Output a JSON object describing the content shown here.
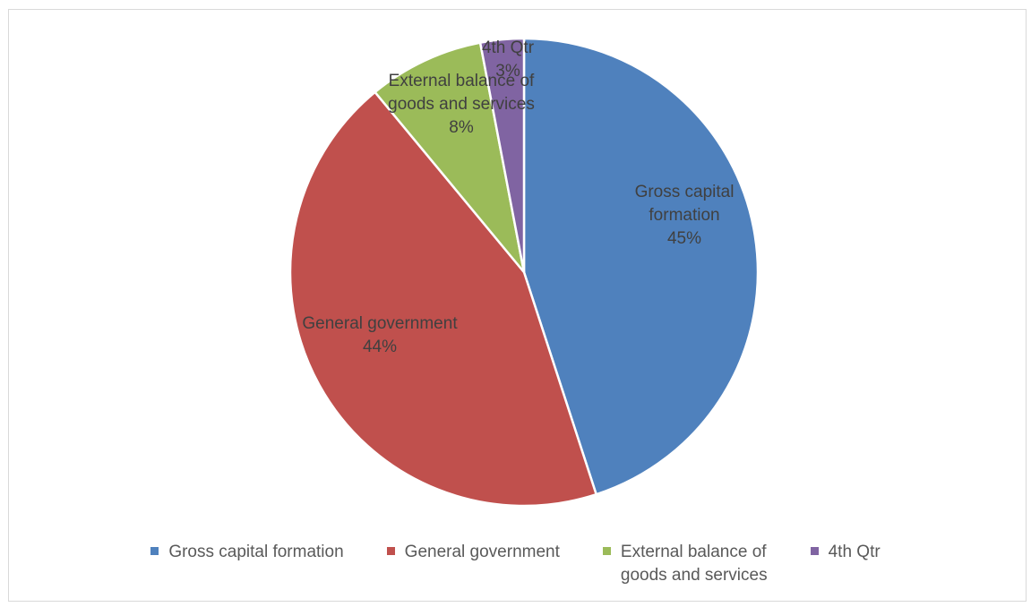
{
  "chart_data": {
    "type": "pie",
    "title": "",
    "slices": [
      {
        "label": "Gross capital formation",
        "value": 45,
        "data_label": "Gross capital\nformation\n45%",
        "color": "#4f81bd"
      },
      {
        "label": "General government",
        "value": 44,
        "data_label": "General government\n44%",
        "color": "#c0504d"
      },
      {
        "label": "External balance of goods and services",
        "value": 8,
        "data_label": "External balance of\ngoods and services\n8%",
        "color": "#9bbb59"
      },
      {
        "label": "4th Qtr",
        "value": 3,
        "data_label": "4th Qtr\n3%",
        "color": "#8064a2"
      }
    ],
    "legend": {
      "position": "bottom",
      "entries": [
        "Gross capital formation",
        "General government",
        "External balance of\ngoods and services",
        "4th Qtr"
      ]
    }
  }
}
